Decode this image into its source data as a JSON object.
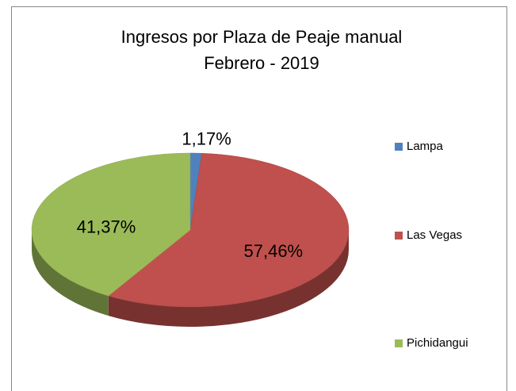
{
  "chart_data": {
    "type": "pie",
    "title": "Ingresos por Plaza de Peaje manual",
    "subtitle": "Febrero - 2019",
    "categories": [
      "Lampa",
      "Las Vegas",
      "Pichidangui"
    ],
    "values": [
      1.17,
      57.46,
      41.37
    ],
    "value_labels": [
      "1,17%",
      "57,46%",
      "41,37%"
    ],
    "colors": [
      "#4f81bd",
      "#c0504d",
      "#9bbb59"
    ],
    "legend": "right"
  }
}
